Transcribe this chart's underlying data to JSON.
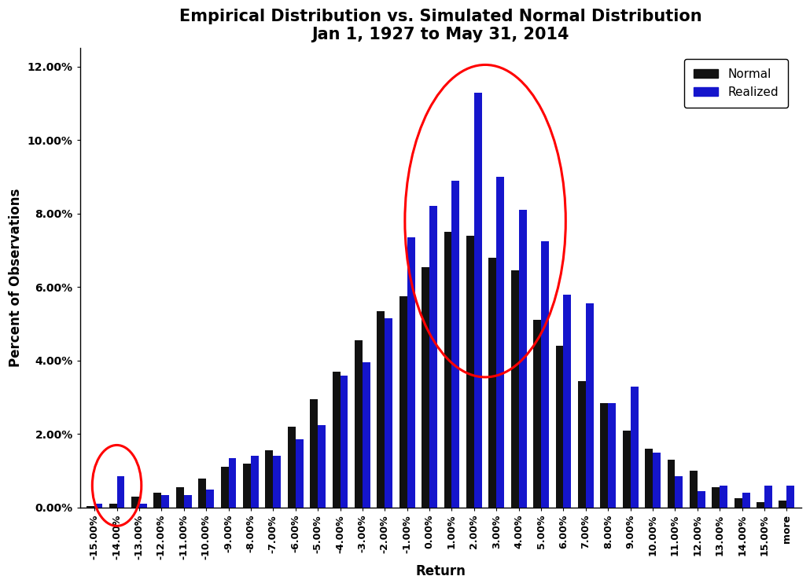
{
  "title_line1": "Empirical Distribution vs. Simulated Normal Distribution",
  "title_line2": "Jan 1, 1927 to May 31, 2014",
  "xlabel": "Return",
  "ylabel": "Percent of Observations",
  "categories": [
    "-15.00%",
    "-14.00%",
    "-13.00%",
    "-12.00%",
    "-11.00%",
    "-10.00%",
    "-9.00%",
    "-8.00%",
    "-7.00%",
    "-6.00%",
    "-5.00%",
    "-4.00%",
    "-3.00%",
    "-2.00%",
    "-1.00%",
    "0.00%",
    "1.00%",
    "2.00%",
    "3.00%",
    "4.00%",
    "5.00%",
    "6.00%",
    "7.00%",
    "8.00%",
    "9.00%",
    "10.00%",
    "11.00%",
    "12.00%",
    "13.00%",
    "14.00%",
    "15.00%",
    "more"
  ],
  "normal": [
    0.05,
    0.1,
    0.3,
    0.4,
    0.55,
    0.8,
    1.1,
    1.2,
    1.55,
    2.2,
    2.95,
    3.7,
    4.55,
    5.35,
    5.75,
    6.55,
    7.5,
    7.4,
    6.8,
    6.45,
    5.1,
    4.4,
    3.45,
    2.85,
    2.1,
    1.6,
    1.3,
    1.0,
    0.55,
    0.25,
    0.15,
    0.2
  ],
  "realized": [
    0.1,
    0.85,
    0.1,
    0.35,
    0.35,
    0.5,
    1.35,
    1.4,
    1.4,
    1.85,
    2.25,
    3.6,
    3.95,
    5.15,
    7.35,
    8.2,
    8.9,
    11.3,
    9.0,
    8.1,
    7.25,
    5.8,
    5.55,
    2.85,
    3.3,
    1.5,
    0.85,
    0.45,
    0.6,
    0.4,
    0.6,
    0.6
  ],
  "normal_color": "#111111",
  "realized_color": "#1515cc",
  "background_color": "#ffffff",
  "ylim_max": 12.5,
  "yticks": [
    0,
    2.0,
    4.0,
    6.0,
    8.0,
    10.0,
    12.0
  ],
  "ytick_labels": [
    "0.00%",
    "2.00%",
    "4.00%",
    "6.00%",
    "8.00%",
    "10.00%",
    "12.00%"
  ],
  "title_fontsize": 15,
  "axis_label_fontsize": 12,
  "tick_fontsize": 9,
  "legend_fontsize": 11,
  "bar_width": 0.35
}
